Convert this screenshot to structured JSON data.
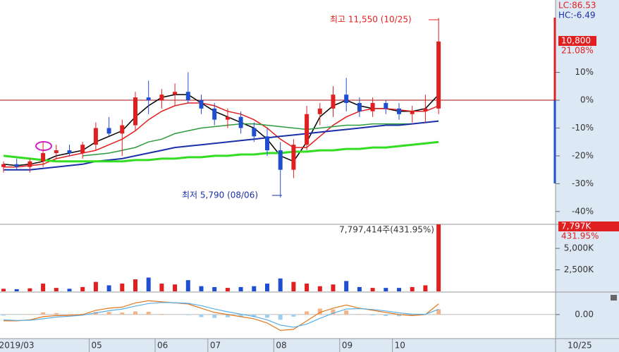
{
  "chart_data": [
    {
      "type": "candlestick",
      "categories": [
        "2019/03",
        null,
        null,
        null,
        null,
        null,
        null,
        "05",
        null,
        null,
        null,
        null,
        "06",
        null,
        null,
        null,
        "07",
        null,
        null,
        null,
        null,
        "08",
        null,
        null,
        null,
        null,
        "09",
        null,
        null,
        null,
        "10",
        null,
        null,
        null
      ],
      "end_label": "10/25",
      "open": [
        -24,
        -23,
        -24,
        -22,
        -19,
        -18,
        -19,
        -16,
        -10,
        -12,
        -9,
        1,
        0,
        2,
        3,
        0,
        -3,
        -7,
        -6,
        -10,
        -13,
        -18,
        -25,
        -16,
        -5,
        -3,
        2,
        -1,
        -4,
        -1,
        -3,
        -5,
        -4,
        -3
      ],
      "high": [
        -22,
        -21,
        -21,
        -15,
        -16,
        -16,
        -15,
        -8,
        -6,
        -7,
        3,
        7,
        4,
        6,
        10,
        2,
        -1,
        -3,
        -4,
        -8,
        -10,
        -15,
        -14,
        -2,
        -1,
        5,
        8,
        1,
        1,
        0,
        -1,
        -2,
        2,
        29.5
      ],
      "low": [
        -26,
        -25,
        -26,
        -24,
        -21,
        -20,
        -21,
        -18,
        -13,
        -20,
        -11,
        -5,
        -3,
        -2,
        -1,
        -5,
        -9,
        -10,
        -12,
        -15,
        -20,
        -35,
        -28,
        -18,
        -9,
        -6,
        -4,
        -6,
        -6,
        -5,
        -7,
        -8,
        -8,
        -5
      ],
      "close": [
        -23,
        -24,
        -22,
        -19,
        -18,
        -19,
        -16,
        -10,
        -12,
        -9,
        1,
        0,
        2,
        3,
        0,
        -3,
        -7,
        -6,
        -10,
        -13,
        -18,
        -25,
        -16,
        -5,
        -3,
        2,
        -1,
        -4,
        -1,
        -3,
        -5,
        -4,
        -3,
        21.08
      ],
      "up_color": "#e02020",
      "down_color": "#1f4fd0",
      "lines": [
        {
          "color": "#000000",
          "values": [
            -23,
            -23.5,
            -23,
            -22,
            -20,
            -19,
            -18,
            -15,
            -13,
            -11,
            -6,
            -2,
            1,
            2,
            2,
            -1,
            -4,
            -6,
            -8,
            -10,
            -14,
            -20,
            -22,
            -15,
            -6,
            -2,
            0,
            -2,
            -3,
            -3,
            -4,
            -4,
            -3,
            2
          ]
        },
        {
          "color": "#e02020",
          "values": [
            -24,
            -24,
            -23.5,
            -23,
            -21,
            -20,
            -19,
            -18,
            -16,
            -14,
            -11,
            -7,
            -4,
            -2,
            -1,
            -1,
            -2,
            -4,
            -5,
            -7,
            -10,
            -14,
            -17,
            -17,
            -13,
            -9,
            -6,
            -4,
            -3,
            -3,
            -3.5,
            -4,
            -4,
            -2
          ]
        },
        {
          "color": "#2e9a3e",
          "values": [
            null,
            null,
            null,
            null,
            null,
            null,
            -20,
            -19.5,
            -19,
            -18,
            -17,
            -15,
            -14,
            -12,
            -11,
            -10,
            -9.5,
            -9,
            -8.5,
            -8.5,
            -9,
            -9.5,
            -10,
            -10.5,
            -10,
            -9.5,
            -9,
            -9,
            -8.5,
            -8.5,
            -8.5,
            -8.5,
            -8,
            -7.5
          ]
        },
        {
          "color": "#1a2fa8",
          "values": [
            -25,
            -25,
            -25,
            -24.5,
            -24,
            -23.5,
            -23,
            -22,
            -21.5,
            -21,
            -20,
            -19,
            -18,
            -17,
            -16.5,
            -16,
            -15.5,
            -15,
            -14.5,
            -14,
            -13.5,
            -13,
            -12.5,
            -12,
            -11.5,
            -11,
            -10.5,
            -10,
            -9.5,
            -9,
            -9,
            -8.5,
            -8,
            -7.5
          ]
        },
        {
          "color": "#33dd22",
          "values": [
            -20,
            -20.5,
            -21,
            -21.5,
            -22,
            -22,
            -22,
            -22,
            -22,
            -22,
            -21.5,
            -21.5,
            -21,
            -21,
            -20.5,
            -20.5,
            -20,
            -20,
            -19.5,
            -19.5,
            -19,
            -19,
            -18.5,
            -18.5,
            -18,
            -18,
            -17.5,
            -17.5,
            -17,
            -17,
            -16.5,
            -16,
            -15.5,
            -15
          ]
        }
      ],
      "ylim": [
        -44.6,
        36
      ],
      "yticks": [
        {
          "value": 10,
          "label": "10%"
        },
        {
          "value": 0,
          "label": "0%"
        },
        {
          "value": -10,
          "label": "-10%"
        },
        {
          "value": -20,
          "label": "-20%"
        },
        {
          "value": -30,
          "label": "-30%"
        },
        {
          "value": -40,
          "label": "-40%"
        }
      ],
      "high_annotation": "최고 11,550 (10/25)",
      "low_annotation": "최저 5,790 (08/06)",
      "lc_label": "LC:86.53",
      "hc_label": "HC:-6.49",
      "last_price_label": "10,800",
      "last_change_label": "21.08%"
    },
    {
      "type": "bar",
      "values": [
        300000,
        250000,
        350000,
        900000,
        400000,
        300000,
        500000,
        1100000,
        700000,
        900000,
        1400000,
        1600000,
        900000,
        800000,
        1300000,
        600000,
        500000,
        400000,
        500000,
        600000,
        900000,
        1500000,
        1100000,
        900000,
        600000,
        800000,
        1200000,
        500000,
        400000,
        400000,
        400000,
        500000,
        700000,
        7797414
      ],
      "ylim": [
        0,
        7800000
      ],
      "yticks": [
        {
          "value": 2500000,
          "label": "2,500K"
        },
        {
          "value": 5000000,
          "label": "5,000K"
        }
      ],
      "last_value_label": "7,797K",
      "last_ratio_label": "431.95%",
      "annotation": "7,797,414주(431.95%)"
    },
    {
      "type": "macd",
      "macd": {
        "color": "#e07820",
        "values": [
          -0.3,
          -0.3,
          -0.25,
          -0.1,
          -0.05,
          -0.05,
          0,
          0.2,
          0.3,
          0.35,
          0.55,
          0.65,
          0.6,
          0.55,
          0.5,
          0.3,
          0.1,
          0,
          -0.1,
          -0.2,
          -0.4,
          -0.75,
          -0.7,
          -0.3,
          0.1,
          0.3,
          0.45,
          0.3,
          0.2,
          0.1,
          0,
          -0.05,
          0,
          0.5
        ]
      },
      "signal": {
        "color": "#5aaee8",
        "values": [
          -0.25,
          -0.28,
          -0.27,
          -0.2,
          -0.12,
          -0.08,
          -0.03,
          0.08,
          0.18,
          0.26,
          0.4,
          0.52,
          0.57,
          0.56,
          0.53,
          0.42,
          0.26,
          0.13,
          0.02,
          -0.09,
          -0.25,
          -0.5,
          -0.6,
          -0.45,
          -0.18,
          0.06,
          0.26,
          0.28,
          0.24,
          0.17,
          0.08,
          0.02,
          0.01,
          0.25
        ]
      },
      "histogram": {
        "up_color": "#f2b28a",
        "down_color": "#9fd0f0",
        "values": [
          -0.05,
          -0.02,
          0.02,
          0.1,
          0.07,
          0.03,
          0.03,
          0.12,
          0.12,
          0.09,
          0.15,
          0.13,
          0.03,
          -0.01,
          -0.03,
          -0.12,
          -0.16,
          -0.13,
          -0.12,
          -0.11,
          -0.15,
          -0.25,
          -0.1,
          0.15,
          0.28,
          0.24,
          0.19,
          0.02,
          -0.04,
          -0.07,
          -0.08,
          -0.07,
          -0.01,
          0.25
        ]
      },
      "ylim": [
        -1.07,
        0.93
      ],
      "yticks": [
        {
          "value": 0,
          "label": "0.00"
        }
      ]
    }
  ]
}
